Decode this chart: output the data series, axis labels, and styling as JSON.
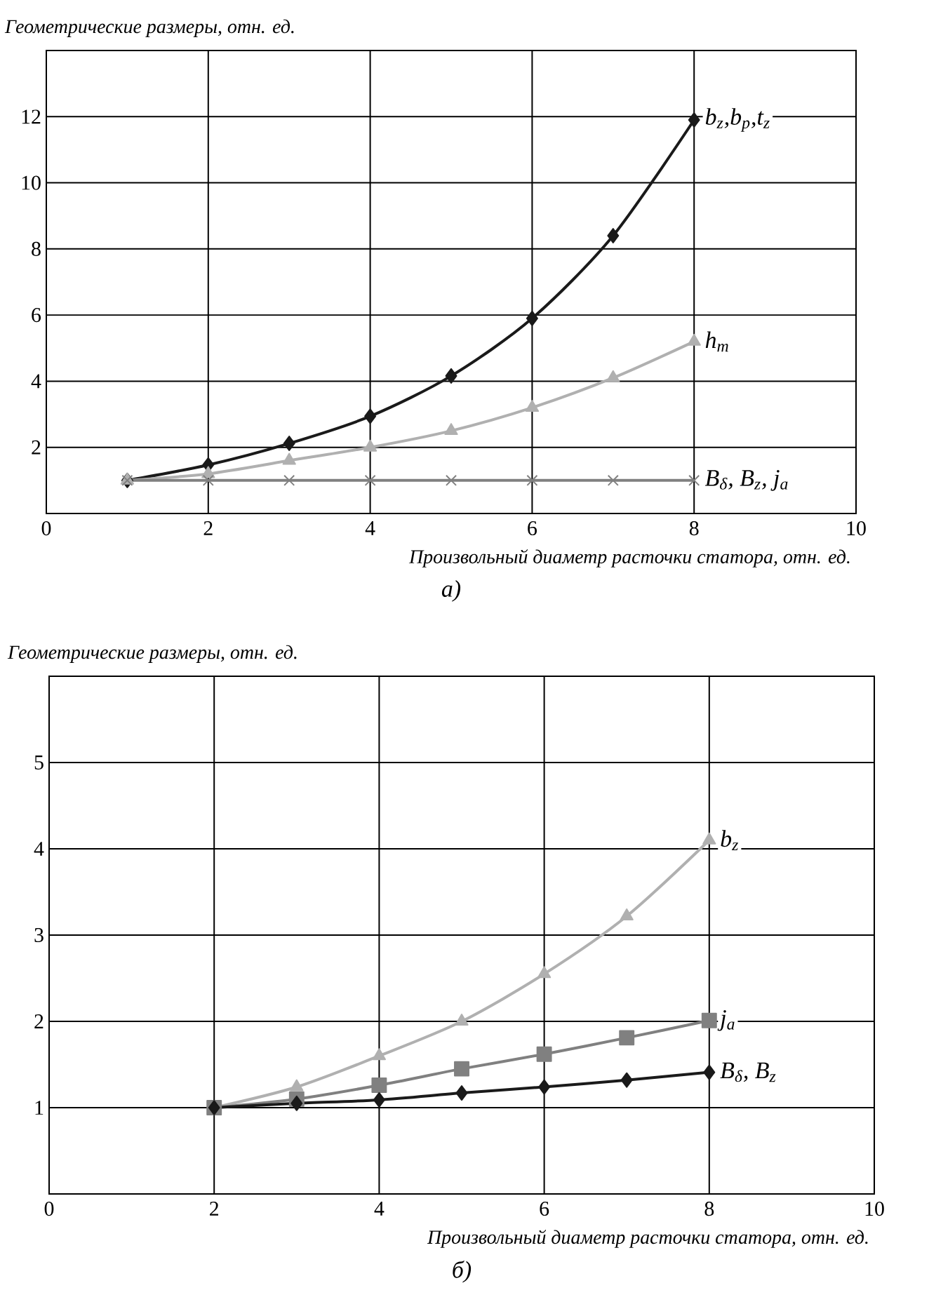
{
  "chart_data": [
    {
      "type": "line",
      "ylabel": "Геометрические размеры, отн. ед.",
      "xlabel": "Произвольный диаметр расточки статора, отн. ед.",
      "annotations": [
        "а)"
      ],
      "xlim": [
        0,
        10
      ],
      "ylim": [
        0,
        14
      ],
      "xticks": [
        0,
        2,
        4,
        6,
        8,
        10
      ],
      "yticks": [
        2,
        4,
        6,
        8,
        10,
        12
      ],
      "grid": true,
      "x": [
        1,
        2,
        3,
        4,
        5,
        6,
        7,
        8
      ],
      "series": [
        {
          "name": "b$_{z}$,b$_{р}$,t$_{z}$",
          "color": "#1a1a1a",
          "marker": "diamond",
          "values": [
            1.0,
            1.47,
            2.12,
            2.94,
            4.16,
            5.9,
            8.4,
            11.9
          ]
        },
        {
          "name": "h$_{m}$",
          "color": "#b0b0b0",
          "marker": "triangle",
          "values": [
            1.0,
            1.2,
            1.6,
            2.0,
            2.5,
            3.2,
            4.1,
            5.2
          ]
        },
        {
          "name": "B$_{δ}$, B$_{z}$, j$_{a}$",
          "color": "#808080",
          "marker": "cross",
          "values": [
            1.0,
            1.0,
            1.0,
            1.0,
            1.0,
            1.0,
            1.0,
            1.0
          ]
        }
      ]
    },
    {
      "type": "line",
      "ylabel": "Геометрические размеры, отн. ед.",
      "xlabel": "Произвольный диаметр расточки статора, отн. ед.",
      "annotations": [
        "б)"
      ],
      "xlim": [
        0,
        10
      ],
      "ylim": [
        0,
        6
      ],
      "xticks": [
        0,
        2,
        4,
        6,
        8,
        10
      ],
      "yticks": [
        1,
        2,
        3,
        4,
        5
      ],
      "grid": true,
      "x": [
        2,
        3,
        4,
        5,
        6,
        7,
        8
      ],
      "series": [
        {
          "name": "b$_{z}$",
          "color": "#b0b0b0",
          "marker": "triangle",
          "values": [
            1.0,
            1.24,
            1.6,
            2.0,
            2.55,
            3.22,
            4.1
          ]
        },
        {
          "name": "j$_{a}$",
          "color": "#808080",
          "marker": "square",
          "values": [
            1.0,
            1.1,
            1.26,
            1.45,
            1.62,
            1.81,
            2.01
          ]
        },
        {
          "name": "B$_{δ}$, B$_{z}$",
          "color": "#1a1a1a",
          "marker": "diamond",
          "values": [
            1.0,
            1.05,
            1.09,
            1.17,
            1.24,
            1.32,
            1.41
          ]
        }
      ]
    }
  ]
}
